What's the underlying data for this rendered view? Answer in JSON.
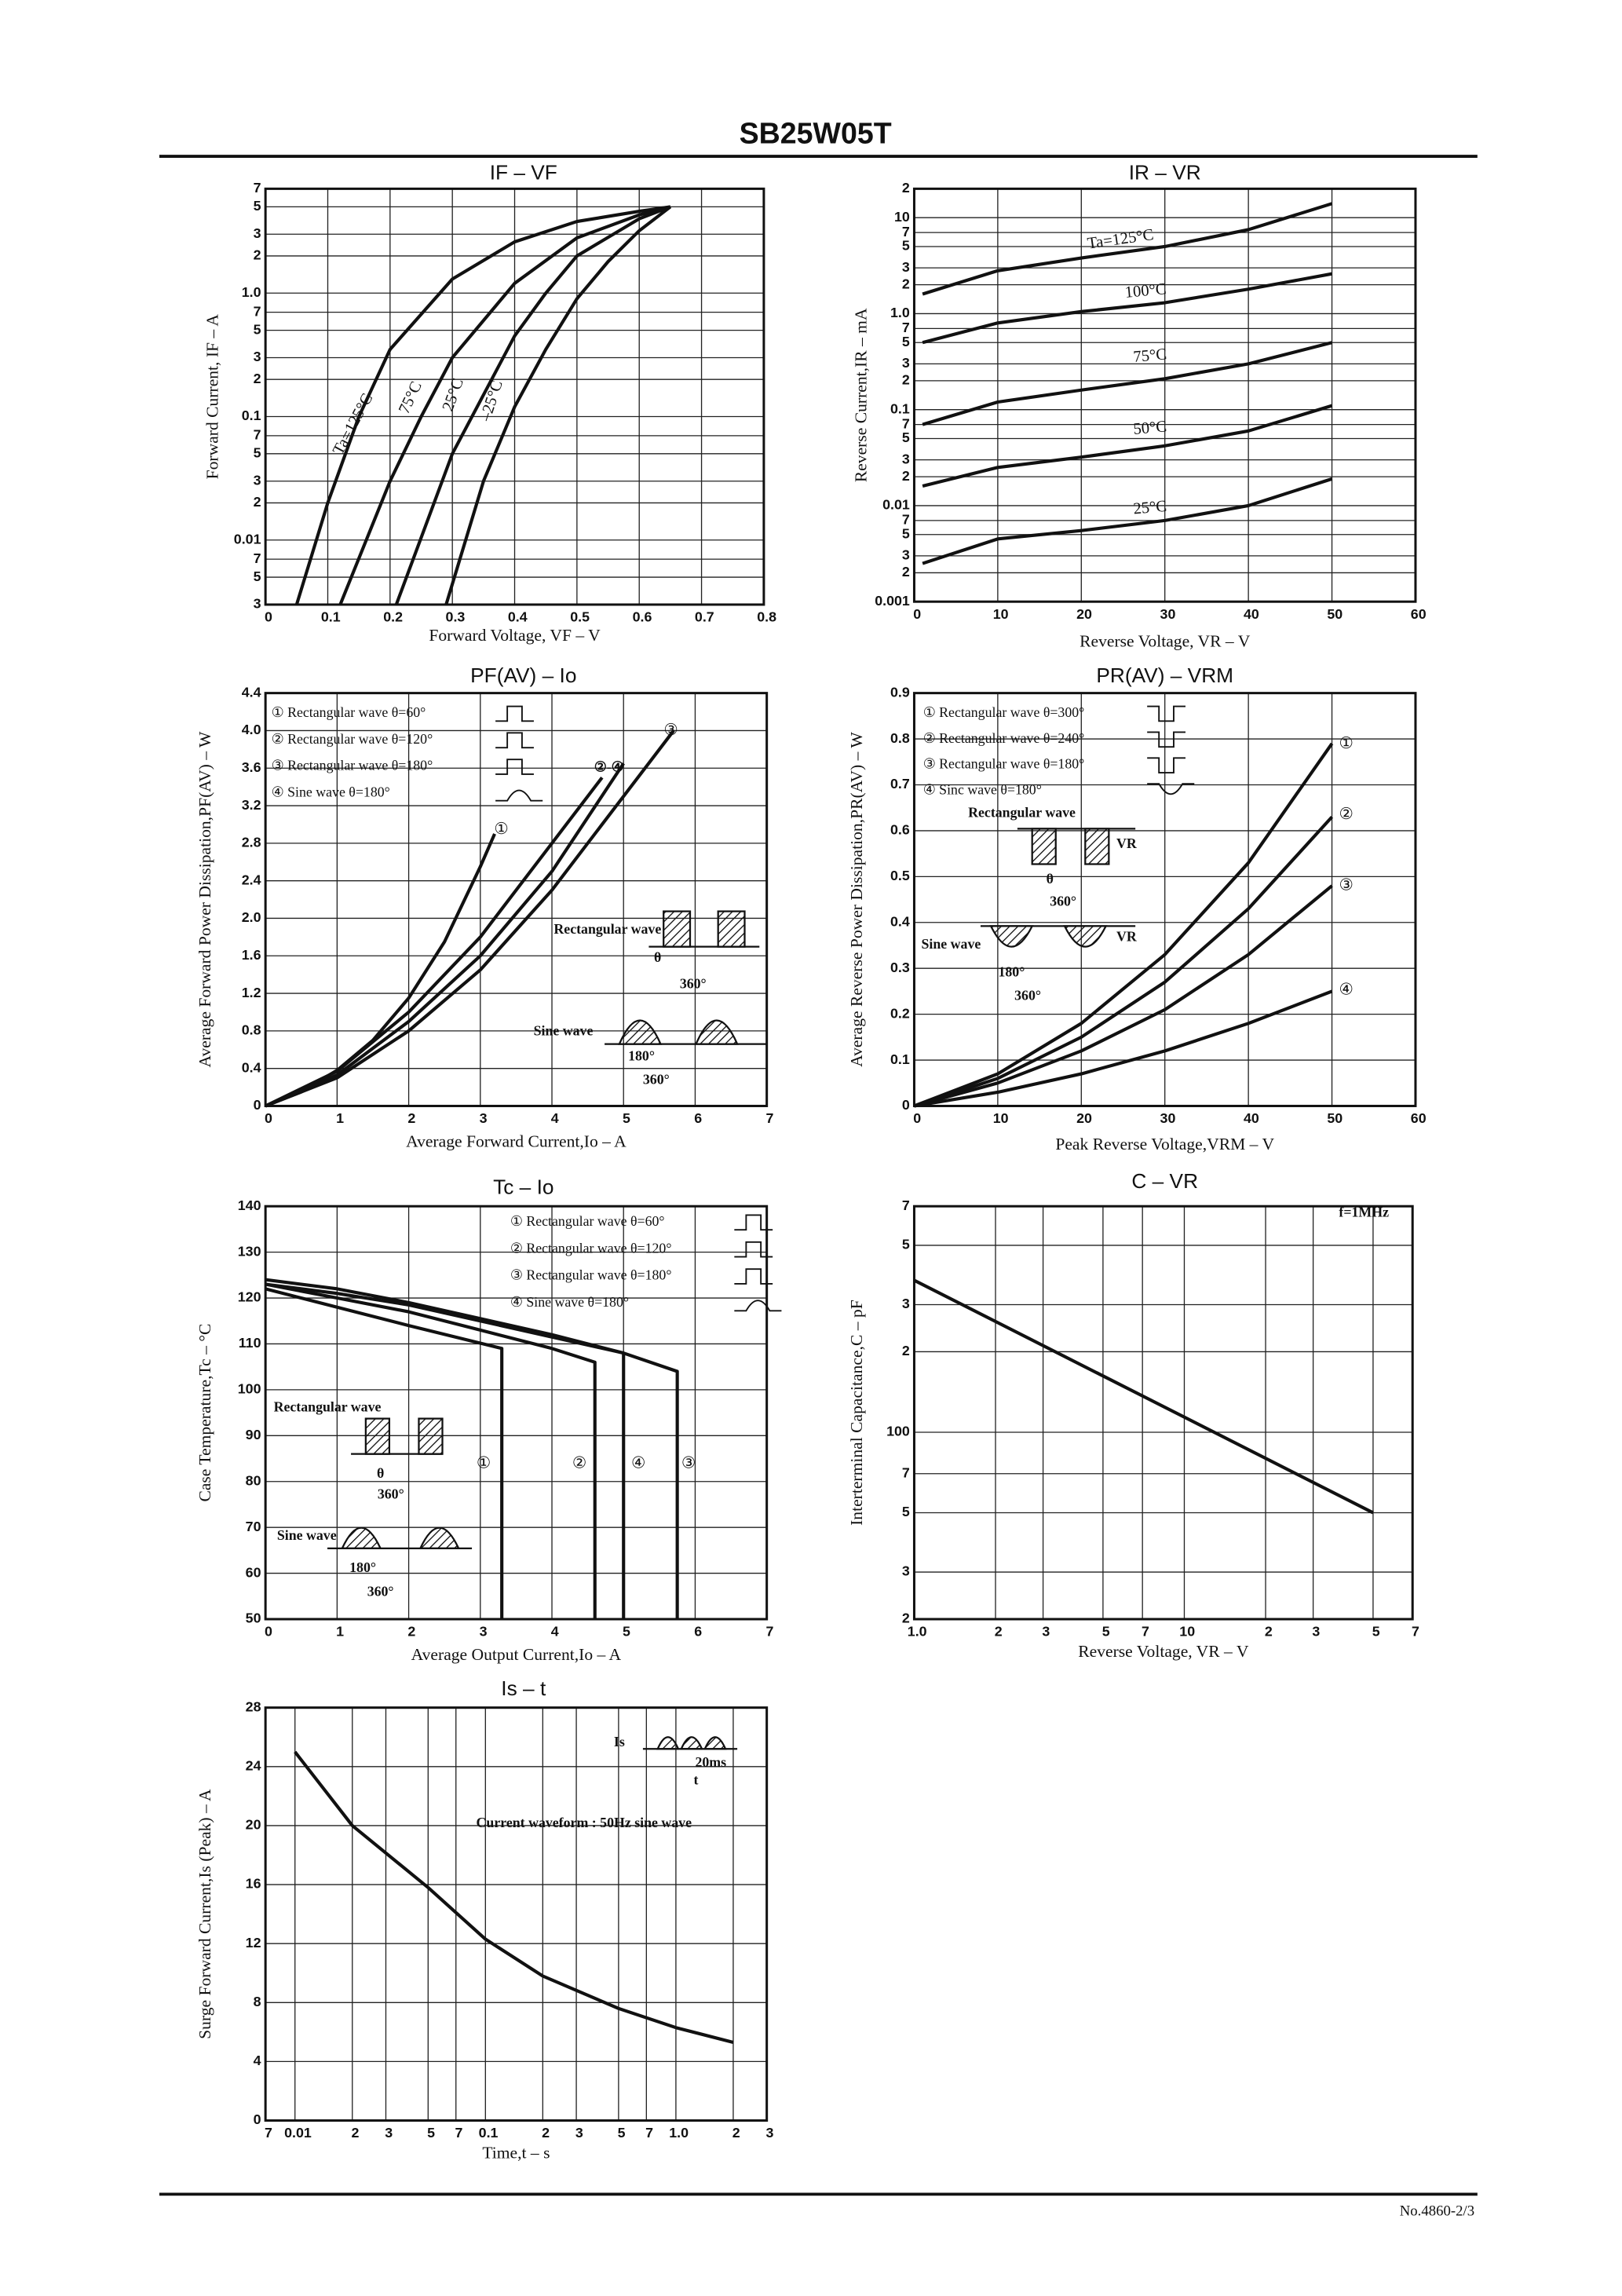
{
  "header": {
    "title": "SB25W05T"
  },
  "footer": {
    "text": "No.4860-2/3"
  },
  "chart_data": [
    {
      "type": "line",
      "title": "IF – VF",
      "x_label": "Forward Voltage, VF – V",
      "y_label": "Forward Current, IF – A",
      "xlim": [
        0,
        0.8
      ],
      "ylim": [
        0.003,
        7
      ],
      "ylog": true,
      "grid": true,
      "legend": false,
      "xticks": [
        0,
        0.1,
        0.2,
        0.3,
        0.4,
        0.5,
        0.6,
        0.7,
        0.8
      ],
      "yticks": [
        7,
        5,
        3,
        2,
        {
          "value": 1,
          "label": "1.0"
        },
        {
          "value": 0.7,
          "label": "7"
        },
        {
          "value": 0.5,
          "label": "5"
        },
        {
          "value": 0.3,
          "label": "3"
        },
        {
          "value": 0.2,
          "label": "2"
        },
        0.1,
        {
          "value": 0.07,
          "label": "7"
        },
        {
          "value": 0.05,
          "label": "5"
        },
        {
          "value": 0.03,
          "label": "3"
        },
        {
          "value": 0.02,
          "label": "2"
        },
        0.01,
        {
          "value": 0.007,
          "label": "7"
        },
        {
          "value": 0.005,
          "label": "5"
        },
        {
          "value": 0.003,
          "label": "3"
        }
      ],
      "series": [
        {
          "name": "Ta=125°C",
          "color": "#111111",
          "x": [
            0.05,
            0.1,
            0.15,
            0.2,
            0.3,
            0.4,
            0.5,
            0.6,
            0.65
          ],
          "values": [
            0.003,
            0.02,
            0.1,
            0.35,
            1.3,
            2.6,
            3.8,
            4.6,
            5
          ]
        },
        {
          "name": "75°C",
          "color": "#111111",
          "x": [
            0.12,
            0.2,
            0.25,
            0.3,
            0.4,
            0.5,
            0.6,
            0.65
          ],
          "values": [
            0.003,
            0.03,
            0.1,
            0.3,
            1.2,
            2.8,
            4.3,
            5
          ]
        },
        {
          "name": "25°C",
          "color": "#111111",
          "x": [
            0.21,
            0.3,
            0.35,
            0.4,
            0.45,
            0.5,
            0.6,
            0.65
          ],
          "values": [
            0.003,
            0.05,
            0.15,
            0.45,
            1,
            2,
            4,
            5
          ]
        },
        {
          "name": "–25°C",
          "color": "#111111",
          "x": [
            0.29,
            0.35,
            0.4,
            0.45,
            0.5,
            0.55,
            0.6,
            0.65
          ],
          "values": [
            0.003,
            0.03,
            0.12,
            0.35,
            0.9,
            1.8,
            3.2,
            5
          ]
        }
      ]
    },
    {
      "type": "line",
      "title": "IR – VR",
      "x_label": "Reverse Voltage, VR – V",
      "y_label": "Reverse Current,IR – mA",
      "xlim": [
        0,
        60
      ],
      "ylim": [
        0.001,
        20
      ],
      "ylog": true,
      "grid": true,
      "legend": false,
      "xticks": [
        0,
        10,
        20,
        30,
        40,
        50,
        60
      ],
      "yticks": [
        {
          "value": 20,
          "label": "2"
        },
        10,
        {
          "value": 7,
          "label": "7"
        },
        {
          "value": 5,
          "label": "5"
        },
        {
          "value": 3,
          "label": "3"
        },
        {
          "value": 2,
          "label": "2"
        },
        {
          "value": 1,
          "label": "1.0"
        },
        {
          "value": 0.7,
          "label": "7"
        },
        {
          "value": 0.5,
          "label": "5"
        },
        {
          "value": 0.3,
          "label": "3"
        },
        {
          "value": 0.2,
          "label": "2"
        },
        0.1,
        {
          "value": 0.07,
          "label": "7"
        },
        {
          "value": 0.05,
          "label": "5"
        },
        {
          "value": 0.03,
          "label": "3"
        },
        {
          "value": 0.02,
          "label": "2"
        },
        0.01,
        {
          "value": 0.007,
          "label": "7"
        },
        {
          "value": 0.005,
          "label": "5"
        },
        {
          "value": 0.003,
          "label": "3"
        },
        {
          "value": 0.002,
          "label": "2"
        },
        0.001
      ],
      "series": [
        {
          "name": "Ta=125°C",
          "color": "#111111",
          "x": [
            1,
            10,
            20,
            30,
            40,
            50
          ],
          "values": [
            1.6,
            2.8,
            3.8,
            5,
            7.5,
            14
          ]
        },
        {
          "name": "100°C",
          "color": "#111111",
          "x": [
            1,
            10,
            20,
            30,
            40,
            50
          ],
          "values": [
            0.5,
            0.8,
            1.05,
            1.3,
            1.8,
            2.6
          ]
        },
        {
          "name": "75°C",
          "color": "#111111",
          "x": [
            1,
            10,
            20,
            30,
            40,
            50
          ],
          "values": [
            0.07,
            0.12,
            0.16,
            0.21,
            0.3,
            0.5
          ]
        },
        {
          "name": "50°C",
          "color": "#111111",
          "x": [
            1,
            10,
            20,
            30,
            40,
            50
          ],
          "values": [
            0.016,
            0.025,
            0.032,
            0.042,
            0.06,
            0.11
          ]
        },
        {
          "name": "25°C",
          "color": "#111111",
          "x": [
            1,
            10,
            20,
            30,
            40,
            50
          ],
          "values": [
            0.0025,
            0.0045,
            0.0055,
            0.007,
            0.01,
            0.019
          ]
        }
      ]
    },
    {
      "type": "line",
      "title": "PF(AV) – Io",
      "x_label": "Average Forward Current,Io – A",
      "y_label": "Average Forward Power Dissipation,PF(AV) – W",
      "xlim": [
        0,
        7
      ],
      "ylim": [
        0,
        4.4
      ],
      "grid": true,
      "legend": true,
      "xticks": [
        0,
        1,
        2,
        3,
        4,
        5,
        6,
        7
      ],
      "yticks": [
        0,
        0.4,
        0.8,
        1.2,
        1.6,
        {
          "value": 2,
          "label": "2.0"
        },
        2.4,
        2.8,
        3.2,
        3.6,
        {
          "value": 4,
          "label": "4.0"
        },
        4.4
      ],
      "series": [
        {
          "name": "① Rectangular wave θ=60°",
          "label": "①",
          "color": "#111111",
          "x": [
            0,
            0.5,
            1,
            1.5,
            2,
            2.5,
            3,
            3.2
          ],
          "values": [
            0,
            0.15,
            0.38,
            0.7,
            1.15,
            1.75,
            2.55,
            2.9
          ]
        },
        {
          "name": "② Rectangular wave θ=120°",
          "color": "#111111",
          "x": [
            0,
            1,
            2,
            3,
            4,
            4.7
          ],
          "values": [
            0,
            0.37,
            1,
            1.8,
            2.8,
            3.5
          ]
        },
        {
          "name": "③ Rectangular wave θ=180°",
          "label": "③",
          "color": "#111111",
          "x": [
            0,
            1,
            2,
            3,
            4,
            5,
            5.7
          ],
          "values": [
            0,
            0.3,
            0.8,
            1.45,
            2.3,
            3.3,
            4
          ]
        },
        {
          "name": "④ Sine wave θ=180°",
          "color": "#111111",
          "x": [
            0,
            1,
            2,
            3,
            4,
            5
          ],
          "values": [
            0,
            0.33,
            0.9,
            1.6,
            2.5,
            3.65
          ]
        }
      ],
      "annotations": [
        "②-④",
        "Rectangular wave",
        "θ",
        "360°",
        "Sine wave",
        "180°",
        "360°"
      ]
    },
    {
      "type": "line",
      "title": "PR(AV) – VRM",
      "x_label": "Peak Reverse Voltage,VRM – V",
      "y_label": "Average Reverse Power Dissipation,PR(AV) – W",
      "xlim": [
        0,
        60
      ],
      "ylim": [
        0,
        0.9
      ],
      "grid": true,
      "legend": true,
      "xticks": [
        0,
        10,
        20,
        30,
        40,
        50,
        60
      ],
      "yticks": [
        0,
        0.1,
        0.2,
        0.3,
        0.4,
        0.5,
        0.6,
        0.7,
        0.8,
        0.9
      ],
      "series": [
        {
          "name": "① Rectangular wave θ=300°",
          "label": "①",
          "color": "#111111",
          "x": [
            0,
            10,
            20,
            30,
            40,
            50
          ],
          "values": [
            0,
            0.07,
            0.18,
            0.33,
            0.53,
            0.79
          ]
        },
        {
          "name": "② Rectangular wave θ=240°",
          "label": "②",
          "color": "#111111",
          "x": [
            0,
            10,
            20,
            30,
            40,
            50
          ],
          "values": [
            0,
            0.06,
            0.15,
            0.27,
            0.43,
            0.63
          ]
        },
        {
          "name": "③ Rectangular wave θ=180°",
          "label": "③",
          "color": "#111111",
          "x": [
            0,
            10,
            20,
            30,
            40,
            50
          ],
          "values": [
            0,
            0.05,
            0.12,
            0.21,
            0.33,
            0.48
          ]
        },
        {
          "name": "④ Sinc wave θ=180°",
          "label": "④",
          "color": "#111111",
          "x": [
            0,
            10,
            20,
            30,
            40,
            50
          ],
          "values": [
            0,
            0.03,
            0.07,
            0.12,
            0.18,
            0.25
          ]
        }
      ],
      "annotations": [
        "Rectangular wave",
        "VR",
        "θ",
        "360°",
        "Sine wave",
        "VR",
        "180°",
        "360°"
      ]
    },
    {
      "type": "line",
      "title": "Tc – Io",
      "x_label": "Average Output Current,Io – A",
      "y_label": "Case Temperature,Tc – °C",
      "xlim": [
        0,
        7
      ],
      "ylim": [
        50,
        140
      ],
      "grid": true,
      "legend": true,
      "xticks": [
        0,
        1,
        2,
        3,
        4,
        5,
        6,
        7
      ],
      "yticks": [
        50,
        60,
        70,
        80,
        90,
        100,
        110,
        120,
        130,
        140
      ],
      "series": [
        {
          "name": "① Rectangular wave θ=60°",
          "label": "①",
          "color": "#111111",
          "x": [
            0,
            1,
            2,
            3.3,
            3.3
          ],
          "values": [
            122,
            118,
            114,
            109,
            50
          ]
        },
        {
          "name": "② Rectangular wave θ=120°",
          "label": "②",
          "color": "#111111",
          "x": [
            0,
            1,
            2,
            3,
            4,
            4.6,
            4.6
          ],
          "values": [
            123,
            120,
            117,
            113,
            109,
            106,
            50
          ]
        },
        {
          "name": "③ Rectangular wave θ=180°",
          "label": "③",
          "color": "#111111",
          "x": [
            0,
            1,
            2,
            3,
            4,
            5,
            5.75,
            5.75
          ],
          "values": [
            124,
            122,
            119,
            115.5,
            112,
            108,
            104,
            50
          ]
        },
        {
          "name": "④ Sine wave θ=180°",
          "label": "④",
          "color": "#111111",
          "x": [
            0,
            1,
            2,
            3,
            4,
            5,
            5
          ],
          "values": [
            123,
            121,
            118.5,
            115,
            111.5,
            108,
            50
          ]
        }
      ],
      "annotations": [
        "Rectangular wave",
        "θ",
        "360°",
        "Sine wave",
        "180°",
        "360°"
      ]
    },
    {
      "type": "line",
      "title": "C – VR",
      "x_label": "Reverse Voltage, VR – V",
      "y_label": "Interterminal Capacitance,C – pF",
      "xlim": [
        1,
        70
      ],
      "ylim": [
        20,
        700
      ],
      "xlog": true,
      "ylog": true,
      "grid": true,
      "legend": false,
      "xticks": [
        {
          "value": 1,
          "label": "1.0"
        },
        2,
        3,
        5,
        7,
        10,
        {
          "value": 20,
          "label": "2"
        },
        {
          "value": 30,
          "label": "3"
        },
        {
          "value": 50,
          "label": "5"
        },
        {
          "value": 70,
          "label": "7"
        }
      ],
      "yticks": [
        {
          "value": 700,
          "label": "7"
        },
        {
          "value": 500,
          "label": "5"
        },
        {
          "value": 300,
          "label": "3"
        },
        {
          "value": 200,
          "label": "2"
        },
        100,
        {
          "value": 70,
          "label": "7"
        },
        {
          "value": 50,
          "label": "5"
        },
        {
          "value": 30,
          "label": "3"
        },
        {
          "value": 20,
          "label": "2"
        }
      ],
      "series": [
        {
          "color": "#111111",
          "x": [
            1,
            50
          ],
          "values": [
            370,
            50
          ]
        }
      ],
      "annotations": [
        "f=1MHz"
      ]
    },
    {
      "type": "line",
      "title": "Is – t",
      "x_label": "Time,t – s",
      "y_label": "Surge Forward Current,Is (Peak) – A",
      "xlim": [
        0.007,
        3
      ],
      "ylim": [
        0,
        28
      ],
      "xlog": true,
      "grid": true,
      "legend": false,
      "xticks": [
        {
          "value": 0.007,
          "label": "7"
        },
        0.01,
        {
          "value": 0.02,
          "label": "2"
        },
        {
          "value": 0.03,
          "label": "3"
        },
        {
          "value": 0.05,
          "label": "5"
        },
        {
          "value": 0.07,
          "label": "7"
        },
        0.1,
        {
          "value": 0.2,
          "label": "2"
        },
        {
          "value": 0.3,
          "label": "3"
        },
        {
          "value": 0.5,
          "label": "5"
        },
        {
          "value": 0.7,
          "label": "7"
        },
        {
          "value": 1,
          "label": "1.0"
        },
        2,
        3
      ],
      "yticks": [
        0,
        4,
        8,
        12,
        16,
        20,
        24,
        28
      ],
      "series": [
        {
          "color": "#111111",
          "x": [
            0.01,
            0.02,
            0.05,
            0.1,
            0.2,
            0.5,
            1,
            2
          ],
          "values": [
            25,
            20,
            15.8,
            12.3,
            9.8,
            7.6,
            6.3,
            5.3
          ]
        }
      ],
      "annotations": [
        "Is",
        "20ms",
        "t",
        "Current waveform : 50Hz sine wave"
      ]
    }
  ]
}
